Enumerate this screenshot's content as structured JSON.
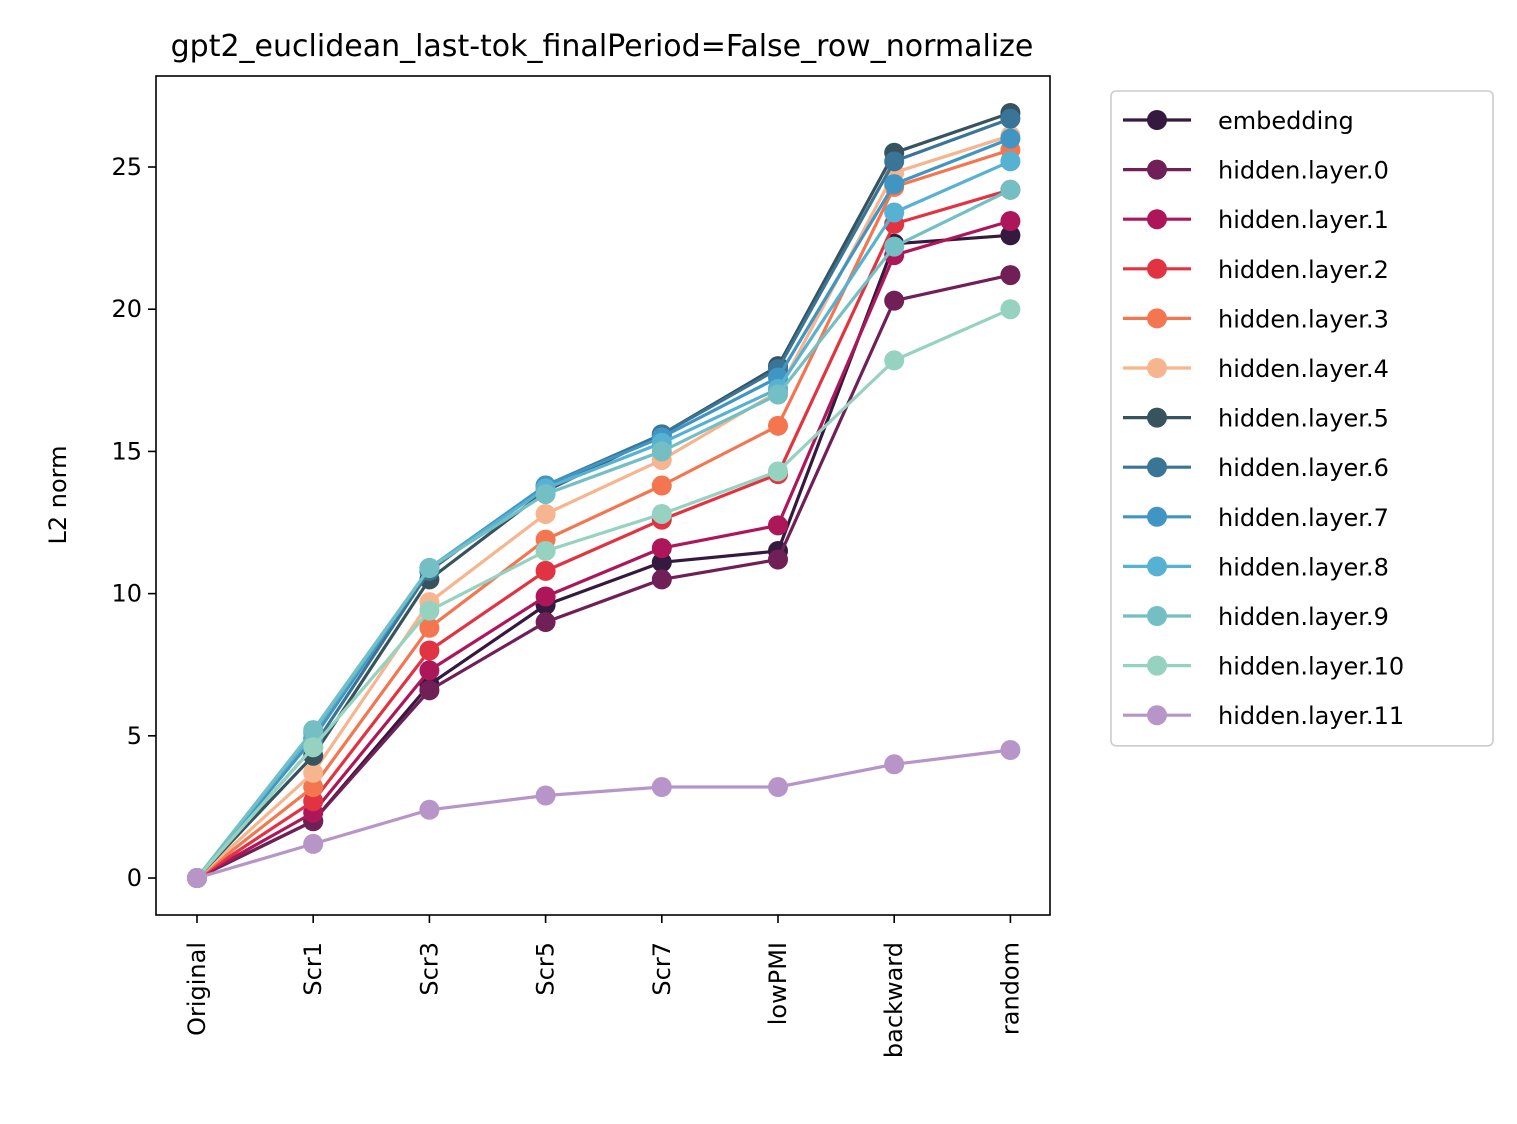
{
  "chart_data": {
    "type": "line",
    "title": "gpt2_euclidean_last-tok_finalPeriod=False_row_normalize",
    "xlabel": "",
    "ylabel": "L2 norm",
    "categories": [
      "Original",
      "Scr1",
      "Scr3",
      "Scr5",
      "Scr7",
      "lowPMI",
      "backward",
      "random"
    ],
    "ylim": [
      -1.3,
      28.2
    ],
    "yticks": [
      0,
      5,
      10,
      15,
      20,
      25
    ],
    "grid": false,
    "legend_position": "outside-right",
    "series": [
      {
        "name": "embedding",
        "color": "#35193e",
        "values": [
          0,
          2.0,
          6.8,
          9.6,
          11.1,
          11.5,
          22.3,
          22.6
        ]
      },
      {
        "name": "hidden.layer.0",
        "color": "#701f57",
        "values": [
          0,
          2.0,
          6.6,
          9.0,
          10.5,
          11.2,
          20.3,
          21.2
        ]
      },
      {
        "name": "hidden.layer.1",
        "color": "#ad1759",
        "values": [
          0,
          2.3,
          7.3,
          9.9,
          11.6,
          12.4,
          21.9,
          23.1
        ]
      },
      {
        "name": "hidden.layer.2",
        "color": "#e13342",
        "values": [
          0,
          2.7,
          8.0,
          10.8,
          12.6,
          14.2,
          23.0,
          24.2
        ]
      },
      {
        "name": "hidden.layer.3",
        "color": "#f37651",
        "values": [
          0,
          3.2,
          8.8,
          11.9,
          13.8,
          15.9,
          24.3,
          25.6
        ]
      },
      {
        "name": "hidden.layer.4",
        "color": "#f6b48f",
        "values": [
          0,
          3.7,
          9.7,
          12.8,
          14.7,
          17.1,
          24.8,
          26.1
        ]
      },
      {
        "name": "hidden.layer.5",
        "color": "#37535e",
        "values": [
          0,
          4.3,
          10.5,
          13.6,
          15.6,
          18.0,
          25.5,
          26.9
        ]
      },
      {
        "name": "hidden.layer.6",
        "color": "#3a7496",
        "values": [
          0,
          4.6,
          10.8,
          13.8,
          15.6,
          17.9,
          25.2,
          26.7
        ]
      },
      {
        "name": "hidden.layer.7",
        "color": "#4095c2",
        "values": [
          0,
          4.9,
          10.9,
          13.8,
          15.5,
          17.6,
          24.4,
          26.0
        ]
      },
      {
        "name": "hidden.layer.8",
        "color": "#56b1d2",
        "values": [
          0,
          5.1,
          10.9,
          13.7,
          15.3,
          17.2,
          23.4,
          25.2
        ]
      },
      {
        "name": "hidden.layer.9",
        "color": "#74bfc4",
        "values": [
          0,
          5.2,
          10.9,
          13.5,
          15.0,
          17.0,
          22.2,
          24.2
        ]
      },
      {
        "name": "hidden.layer.10",
        "color": "#96d2c0",
        "values": [
          0,
          4.6,
          9.4,
          11.5,
          12.8,
          14.3,
          18.2,
          20.0
        ]
      },
      {
        "name": "hidden.layer.11",
        "color": "#b895c8",
        "values": [
          0,
          1.2,
          2.4,
          2.9,
          3.2,
          3.2,
          4.0,
          4.5
        ]
      }
    ]
  }
}
